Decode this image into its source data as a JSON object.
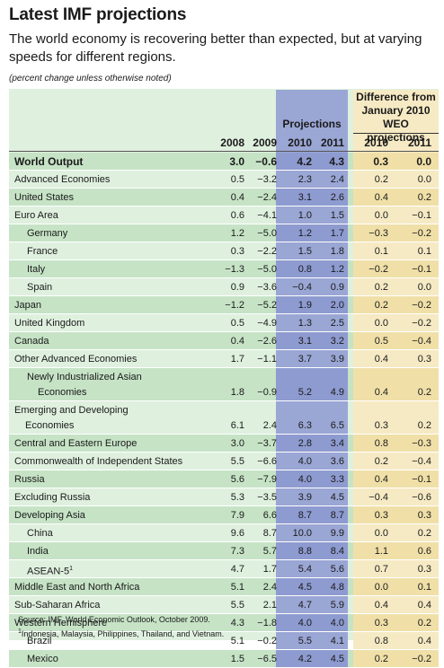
{
  "title": "Latest IMF projections",
  "subtitle": "The world economy is recovering better than expected, but at varying speeds for different regions.",
  "note": "(percent change unless otherwise noted)",
  "header": {
    "projections": "Projections",
    "difference": "Difference from January 2010 WEO projections",
    "years": [
      "2008",
      "2009",
      "2010",
      "2011",
      "2010",
      "2011"
    ]
  },
  "rows": [
    {
      "label": "World Output",
      "indent": 0,
      "bold": true,
      "shade": true,
      "values": [
        "3.0",
        "−0.6",
        "4.2",
        "4.3",
        "0.3",
        "0.0"
      ]
    },
    {
      "label": "Advanced Economies",
      "indent": 0,
      "shade": false,
      "values": [
        "0.5",
        "−3.2",
        "2.3",
        "2.4",
        "0.2",
        "0.0"
      ]
    },
    {
      "label": "United States",
      "indent": 0,
      "shade": true,
      "values": [
        "0.4",
        "−2.4",
        "3.1",
        "2.6",
        "0.4",
        "0.2"
      ]
    },
    {
      "label": "Euro Area",
      "indent": 0,
      "shade": false,
      "values": [
        "0.6",
        "−4.1",
        "1.0",
        "1.5",
        "0.0",
        "−0.1"
      ]
    },
    {
      "label": "Germany",
      "indent": 1,
      "shade": true,
      "values": [
        "1.2",
        "−5.0",
        "1.2",
        "1.7",
        "−0.3",
        "−0.2"
      ]
    },
    {
      "label": "France",
      "indent": 1,
      "shade": false,
      "values": [
        "0.3",
        "−2.2",
        "1.5",
        "1.8",
        "0.1",
        "0.1"
      ]
    },
    {
      "label": "Italy",
      "indent": 1,
      "shade": true,
      "values": [
        "−1.3",
        "−5.0",
        "0.8",
        "1.2",
        "−0.2",
        "−0.1"
      ]
    },
    {
      "label": "Spain",
      "indent": 1,
      "shade": false,
      "values": [
        "0.9",
        "−3.6",
        "−0.4",
        "0.9",
        "0.2",
        "0.0"
      ]
    },
    {
      "label": "Japan",
      "indent": 0,
      "shade": true,
      "values": [
        "−1.2",
        "−5.2",
        "1.9",
        "2.0",
        "0.2",
        "−0.2"
      ]
    },
    {
      "label": "United Kingdom",
      "indent": 0,
      "shade": false,
      "values": [
        "0.5",
        "−4.9",
        "1.3",
        "2.5",
        "0.0",
        "−0.2"
      ]
    },
    {
      "label": "Canada",
      "indent": 0,
      "shade": true,
      "values": [
        "0.4",
        "−2.6",
        "3.1",
        "3.2",
        "0.5",
        "−0.4"
      ]
    },
    {
      "label": "Other Advanced Economies",
      "indent": 0,
      "shade": false,
      "values": [
        "1.7",
        "−1.1",
        "3.7",
        "3.9",
        "0.4",
        "0.3"
      ]
    },
    {
      "label": "Newly Industrialized Asian",
      "label2": "Economies",
      "indent": 1,
      "shade": true,
      "values": [
        "1.8",
        "−0.9",
        "5.2",
        "4.9",
        "0.4",
        "0.2"
      ]
    },
    {
      "label": "Emerging and Developing",
      "label2": "Economies",
      "indent": 0,
      "shade": false,
      "values": [
        "6.1",
        "2.4",
        "6.3",
        "6.5",
        "0.3",
        "0.2"
      ]
    },
    {
      "label": "Central and Eastern Europe",
      "indent": 0,
      "shade": true,
      "values": [
        "3.0",
        "−3.7",
        "2.8",
        "3.4",
        "0.8",
        "−0.3"
      ]
    },
    {
      "label": "Commonwealth of Independent States",
      "indent": 0,
      "shade": false,
      "values": [
        "5.5",
        "−6.6",
        "4.0",
        "3.6",
        "0.2",
        "−0.4"
      ]
    },
    {
      "label": "Russia",
      "indent": 0,
      "shade": true,
      "values": [
        "5.6",
        "−7.9",
        "4.0",
        "3.3",
        "0.4",
        "−0.1"
      ]
    },
    {
      "label": "Excluding Russia",
      "indent": 0,
      "shade": false,
      "values": [
        "5.3",
        "−3.5",
        "3.9",
        "4.5",
        "−0.4",
        "−0.6"
      ]
    },
    {
      "label": "Developing Asia",
      "indent": 0,
      "shade": true,
      "values": [
        "7.9",
        "6.6",
        "8.7",
        "8.7",
        "0.3",
        "0.3"
      ]
    },
    {
      "label": "China",
      "indent": 1,
      "shade": false,
      "values": [
        "9.6",
        "8.7",
        "10.0",
        "9.9",
        "0.0",
        "0.2"
      ]
    },
    {
      "label": "India",
      "indent": 1,
      "shade": true,
      "values": [
        "7.3",
        "5.7",
        "8.8",
        "8.4",
        "1.1",
        "0.6"
      ]
    },
    {
      "label": "ASEAN-5",
      "sup": "1",
      "indent": 1,
      "shade": false,
      "values": [
        "4.7",
        "1.7",
        "5.4",
        "5.6",
        "0.7",
        "0.3"
      ]
    },
    {
      "label": "Middle East and North Africa",
      "indent": 0,
      "shade": true,
      "values": [
        "5.1",
        "2.4",
        "4.5",
        "4.8",
        "0.0",
        "0.1"
      ]
    },
    {
      "label": "Sub-Saharan Africa",
      "indent": 0,
      "shade": false,
      "values": [
        "5.5",
        "2.1",
        "4.7",
        "5.9",
        "0.4",
        "0.4"
      ]
    },
    {
      "label": "Western Hemisphere",
      "indent": 0,
      "shade": true,
      "values": [
        "4.3",
        "−1.8",
        "4.0",
        "4.0",
        "0.3",
        "0.2"
      ]
    },
    {
      "label": "Brazil",
      "indent": 1,
      "shade": false,
      "values": [
        "5.1",
        "−0.2",
        "5.5",
        "4.1",
        "0.8",
        "0.4"
      ]
    },
    {
      "label": "Mexico",
      "indent": 1,
      "shade": true,
      "values": [
        "1.5",
        "−6.5",
        "4.2",
        "4.5",
        "0.2",
        "−0.2"
      ]
    }
  ],
  "footer": {
    "source": "Source: IMF, World Economic Outlook, October 2009.",
    "footnote_mark": "1",
    "footnote": "Indonesia, Malaysia, Philippines, Thailand, and Vietnam."
  }
}
